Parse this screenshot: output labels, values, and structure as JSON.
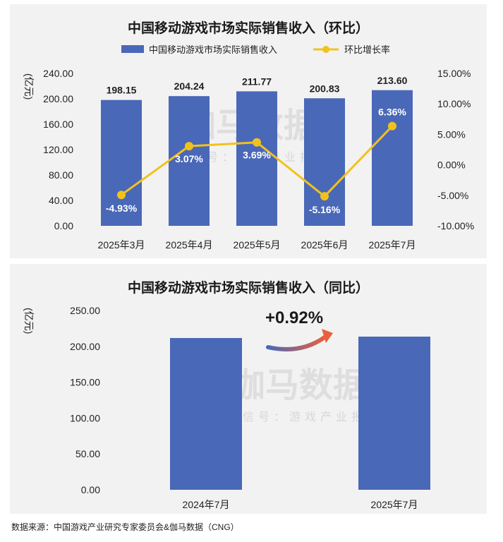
{
  "chart_data": [
    {
      "type": "bar+line",
      "title": "中国移动游戏市场实际销售收入（环比）",
      "ylabel": "(亿元)",
      "categories": [
        "2025年3月",
        "2025年4月",
        "2025年5月",
        "2025年6月",
        "2025年7月"
      ],
      "series": [
        {
          "name": "中国移动游戏市场实际销售收入",
          "type": "bar",
          "axis": "left",
          "values": [
            198.15,
            204.24,
            211.77,
            200.83,
            213.6
          ],
          "labels": [
            "198.15",
            "204.24",
            "211.77",
            "200.83",
            "213.60"
          ]
        },
        {
          "name": "环比增长率",
          "type": "line",
          "axis": "right",
          "values": [
            -4.93,
            3.07,
            3.69,
            -5.16,
            6.36
          ],
          "labels": [
            "-4.93%",
            "3.07%",
            "3.69%",
            "-5.16%",
            "6.36%"
          ]
        }
      ],
      "ylim": [
        0,
        240
      ],
      "y2lim": [
        -10,
        15
      ],
      "y_ticks": [
        "0.00",
        "40.00",
        "80.00",
        "120.00",
        "160.00",
        "200.00",
        "240.00"
      ],
      "y2_ticks": [
        "-10.00%",
        "-5.00%",
        "0.00%",
        "5.00%",
        "10.00%",
        "15.00%"
      ],
      "legend": "top-center",
      "grid": false,
      "colors": {
        "bar": "#4a68b8",
        "line": "#f2c21b"
      }
    },
    {
      "type": "bar",
      "title": "中国移动游戏市场实际销售收入（同比）",
      "ylabel": "(亿元)",
      "categories": [
        "2024年7月",
        "2025年7月"
      ],
      "values": [
        211.66,
        213.6
      ],
      "ylim": [
        0,
        250
      ],
      "y_ticks": [
        "0.00",
        "50.00",
        "100.00",
        "150.00",
        "200.00",
        "250.00"
      ],
      "annotation": "+0.92%",
      "grid": false,
      "colors": {
        "bar": "#4a68b8"
      }
    }
  ],
  "watermark": {
    "main": "伽马数据",
    "sub": "微信号：游戏产业报告"
  },
  "source": "数据来源：中国游戏产业研究专家委员会&伽马数据（CNG）"
}
